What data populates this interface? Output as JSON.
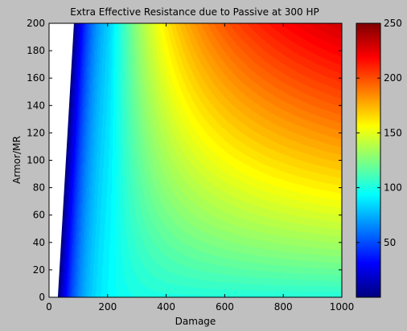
{
  "chart_data": {
    "type": "heatmap",
    "title": "Extra Effective Resistance due to Passive at 300 HP",
    "xlabel": "Damage",
    "ylabel": "Armor/MR",
    "xlim": [
      0,
      1000
    ],
    "ylim": [
      0,
      200
    ],
    "xticks": [
      "0",
      "200",
      "400",
      "600",
      "800",
      "1000"
    ],
    "yticks": [
      "0",
      "20",
      "40",
      "60",
      "80",
      "100",
      "120",
      "140",
      "160",
      "180",
      "200"
    ],
    "colorbar": {
      "min": 0,
      "max": 250,
      "ticks": [
        "50",
        "100",
        "150",
        "200",
        "250"
      ],
      "colormap": "jet"
    },
    "undefined_region": {
      "color": "#ffffff",
      "boundary_damage_at_armor_0": 30,
      "boundary_damage_at_armor_200": 85
    },
    "samples": [
      {
        "damage": 100,
        "armor": 0,
        "value": 45
      },
      {
        "damage": 200,
        "armor": 0,
        "value": 105
      },
      {
        "damage": 600,
        "armor": 0,
        "value": 100
      },
      {
        "damage": 1000,
        "armor": 0,
        "value": 100
      },
      {
        "damage": 200,
        "armor": 100,
        "value": 120
      },
      {
        "damage": 300,
        "armor": 200,
        "value": 150
      },
      {
        "damage": 600,
        "armor": 100,
        "value": 165
      },
      {
        "damage": 1000,
        "armor": 100,
        "value": 185
      },
      {
        "damage": 1000,
        "armor": 200,
        "value": 250
      }
    ]
  }
}
